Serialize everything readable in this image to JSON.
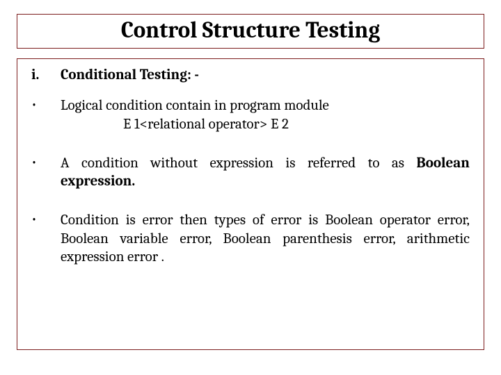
{
  "title": "Control Structure Testing",
  "subheading_marker": "i.",
  "subheading_text": "Conditional Testing: -",
  "bullets": [
    {
      "line1": "Logical condition contain in program module",
      "line2": "E 1<relational operator> E 2"
    },
    {
      "prefix": "A condition without expression is referred to as ",
      "bold_suffix": "Boolean expression."
    },
    {
      "text": "Condition is error then types of error is Boolean operator error, Boolean variable error, Boolean parenthesis error, arithmetic expression error ."
    }
  ],
  "colors": {
    "border": "#7a1b1b",
    "text": "#000000",
    "background": "#ffffff"
  },
  "typography": {
    "title_fontsize": 33,
    "body_fontsize": 21,
    "font_family": "Cambria, Georgia, Times New Roman, serif"
  },
  "layout": {
    "slide_width": 720,
    "slide_height": 540,
    "marker_col_width": 42
  }
}
